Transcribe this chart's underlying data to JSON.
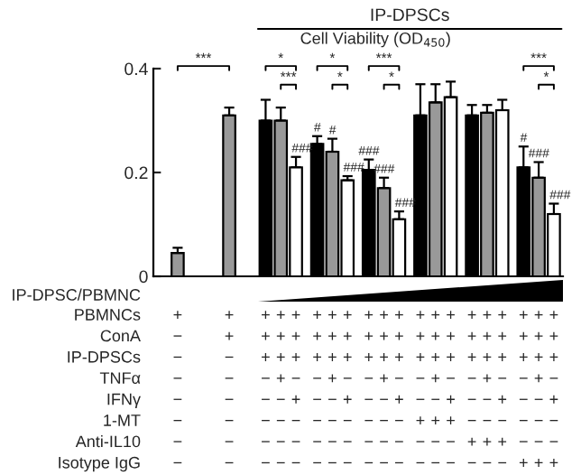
{
  "chart_data": {
    "type": "bar",
    "title": "Cell Viability (OD$_{450}$)",
    "categories": [
      "+\n−\n−\n−\n−\n−\n−\n−",
      "+\n+\n−\n−\n−\n−\n−\n−",
      "+++\n+++\n+++\n−+−\n−−+\n−−−\n−−−\n−−−",
      "+++\n+++\n+++\n−+−\n−−+\n−−−\n−−−\n−−−",
      "+++\n+++\n+++\n−+−\n−−+\n−−−\n−−−\n−−−",
      "+++\n+++\n+++\n−+−\n−−+\n+++\n−−−\n−−−",
      "+++\n+++\n+++\n−+−\n−−+\n−−−\n+++\n−−−",
      "+++\n+++\n+++\n−+−\n−−+\n−−−\n−−−\n+++"
    ],
    "series": [
      {
        "color": "#000000",
        "values": [
          null,
          null,
          0.3,
          0.255,
          0.205,
          0.31,
          0.31,
          0.21
        ],
        "errors": [
          null,
          null,
          0.04,
          0.015,
          0.02,
          0.06,
          0.02,
          0.04
        ],
        "value_labels": [
          null,
          null,
          null,
          "#",
          "###",
          null,
          null,
          "#"
        ]
      },
      {
        "color": "#999999",
        "values": [
          0.045,
          0.31,
          0.3,
          0.24,
          0.17,
          0.335,
          0.315,
          0.19
        ],
        "errors": [
          0.01,
          0.015,
          0.025,
          0.025,
          0.02,
          0.035,
          0.015,
          0.03
        ],
        "value_labels": [
          null,
          null,
          null,
          "#",
          "###",
          null,
          null,
          "###"
        ]
      },
      {
        "color": "#ffffff",
        "values": [
          null,
          null,
          0.21,
          0.185,
          0.11,
          0.345,
          0.32,
          0.12
        ],
        "errors": [
          null,
          null,
          0.02,
          0.008,
          0.015,
          0.03,
          0.02,
          0.02
        ],
        "value_labels": [
          null,
          null,
          "###",
          "###",
          "###",
          null,
          null,
          "###"
        ]
      }
    ],
    "ylim": [
      0,
      0.4
    ],
    "yticks": [
      0,
      0.2,
      0.4
    ],
    "grid": false,
    "legend": false,
    "annotations": [
      "IP-DPSCs",
      "IP-DPSC/PBMNC",
      "PBMNCs",
      "ConA",
      "IP-DPSCs",
      "TNFα",
      "IFNγ",
      "1-MT",
      "Anti-IL10",
      "Isotype IgG",
      "***",
      "*",
      "***",
      "*",
      "*",
      "***",
      "*",
      "***",
      "*"
    ]
  }
}
